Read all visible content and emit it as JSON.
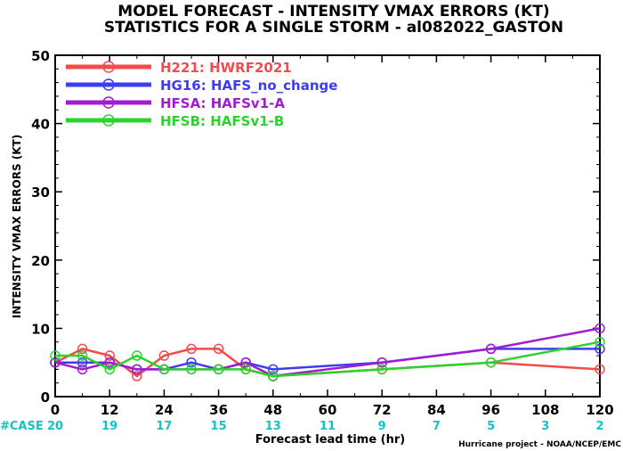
{
  "title_line1": "MODEL FORECAST - INTENSITY VMAX ERRORS (KT)",
  "title_line2": "STATISTICS FOR A SINGLE STORM - al082022_GASTON",
  "credit": "Hurricane project - NOAA/NCEP/EMC",
  "case_label": "#CASE",
  "case_color": "#10c4c4",
  "chart_data": {
    "type": "line",
    "ylabel": "INTENSITY VMAX ERRORS (KT)",
    "xlabel": "Forecast lead time (hr)",
    "xlim": [
      0,
      120
    ],
    "ylim": [
      0,
      50
    ],
    "xticks": [
      0,
      12,
      24,
      36,
      48,
      60,
      72,
      84,
      96,
      108,
      120
    ],
    "yticks": [
      0,
      10,
      20,
      30,
      40,
      50
    ],
    "legend_position": "top-left",
    "grid": false,
    "cases": [
      {
        "x": 0,
        "n": 20
      },
      {
        "x": 12,
        "n": 19
      },
      {
        "x": 24,
        "n": 17
      },
      {
        "x": 36,
        "n": 15
      },
      {
        "x": 48,
        "n": 13
      },
      {
        "x": 60,
        "n": 11
      },
      {
        "x": 72,
        "n": 9
      },
      {
        "x": 84,
        "n": 7
      },
      {
        "x": 96,
        "n": 5
      },
      {
        "x": 108,
        "n": 3
      },
      {
        "x": 120,
        "n": 2
      }
    ],
    "series": [
      {
        "code": "H221",
        "name": "HWRF2021",
        "color": "#f24b4b",
        "x": [
          0,
          6,
          12,
          18,
          24,
          30,
          36,
          42,
          48,
          72,
          96,
          120
        ],
        "y": [
          5,
          7,
          6,
          3,
          6,
          7,
          7,
          4,
          3,
          4,
          5,
          4
        ]
      },
      {
        "code": "HG16",
        "name": "HAFS_no_change",
        "color": "#3c3cf2",
        "x": [
          0,
          6,
          12,
          18,
          24,
          30,
          36,
          42,
          48,
          72,
          96,
          120
        ],
        "y": [
          5,
          5,
          5,
          4,
          4,
          5,
          4,
          5,
          4,
          5,
          7,
          7
        ]
      },
      {
        "code": "HFSA",
        "name": "HAFSv1-A",
        "color": "#a21ccf",
        "x": [
          0,
          6,
          12,
          18,
          24,
          30,
          36,
          42,
          48,
          72,
          96,
          120
        ],
        "y": [
          5,
          4,
          5,
          4,
          4,
          4,
          4,
          5,
          3,
          5,
          7,
          10
        ]
      },
      {
        "code": "HFSB",
        "name": "HAFSv1-B",
        "color": "#2bd42b",
        "x": [
          0,
          6,
          12,
          18,
          24,
          30,
          36,
          42,
          48,
          72,
          96,
          120
        ],
        "y": [
          6,
          6,
          4,
          6,
          4,
          4,
          4,
          4,
          3,
          4,
          5,
          8
        ]
      }
    ]
  }
}
